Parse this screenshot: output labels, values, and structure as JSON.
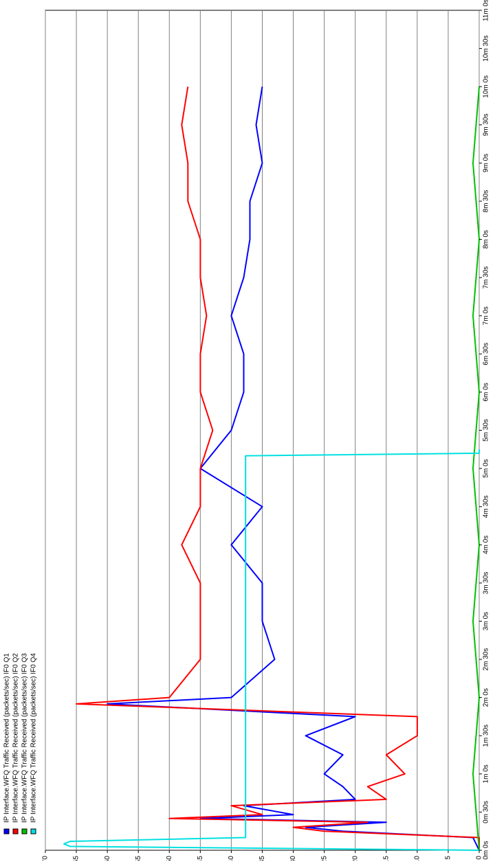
{
  "chart_data": {
    "type": "line",
    "xlabel": "",
    "ylabel": "",
    "orientation": "rotated-90",
    "grid": true,
    "legend_placement": "left",
    "y_ticks": [
      0,
      5,
      10,
      15,
      20,
      25,
      30,
      35,
      40,
      45,
      50,
      55,
      60,
      65,
      70
    ],
    "x_tick_labels": [
      "0m 0s",
      "0m 30s",
      "1m 0s",
      "1m 30s",
      "2m 0s",
      "2m 30s",
      "3m 0s",
      "3m 30s",
      "4m 0s",
      "4m 30s",
      "5m 0s",
      "5m 30s",
      "6m 0s",
      "6m 30s",
      "7m 0s",
      "7m 30s",
      "8m 0s",
      "8m 30s",
      "9m 0s",
      "9m 30s",
      "10m 0s",
      "10m 30s",
      "11m 0s"
    ],
    "xlim_seconds": [
      0,
      660
    ],
    "ylim": [
      0,
      70
    ],
    "series": [
      {
        "name": "IP Interface.WFQ Traffic Received (packets/sec) IF0 Q1",
        "color": "#0000ff",
        "x": [
          0,
          10,
          15,
          18,
          22,
          25,
          28,
          35,
          40,
          50,
          60,
          75,
          90,
          105,
          115,
          120,
          150,
          180,
          210,
          240,
          270,
          300,
          330,
          360,
          390,
          420,
          450,
          480,
          510,
          540,
          570,
          600
        ],
        "values": [
          0,
          1,
          22,
          28,
          15,
          45,
          30,
          38,
          20,
          22,
          25,
          22,
          28,
          20,
          60,
          40,
          33,
          35,
          35,
          40,
          35,
          45,
          40,
          38,
          38,
          40,
          38,
          37,
          37,
          35,
          36,
          35
        ]
      },
      {
        "name": "IP Interface.WFQ Traffic Received (packets/sec) IF0 Q2",
        "color": "#ff0000",
        "x": [
          0,
          10,
          15,
          18,
          22,
          25,
          28,
          35,
          40,
          50,
          60,
          75,
          90,
          105,
          115,
          120,
          150,
          180,
          210,
          240,
          270,
          300,
          330,
          360,
          390,
          420,
          450,
          480,
          510,
          540,
          570,
          600
        ],
        "values": [
          0,
          0,
          25,
          30,
          18,
          50,
          35,
          40,
          15,
          18,
          12,
          15,
          10,
          10,
          65,
          50,
          45,
          45,
          45,
          48,
          45,
          45,
          43,
          45,
          45,
          44,
          45,
          45,
          47,
          47,
          48,
          47
        ]
      },
      {
        "name": "IP Interface.WFQ Traffic Received (packets/sec) IF0 Q3",
        "color": "#00c000",
        "x": [
          0,
          60,
          120,
          180,
          240,
          300,
          360,
          420,
          480,
          540,
          600
        ],
        "values": [
          0,
          1,
          0,
          1,
          0,
          1,
          0,
          1,
          0,
          1,
          0
        ]
      },
      {
        "name": "IP Interface.WFQ Traffic Received (packets/sec) IF0 Q4",
        "color": "#00e0e0",
        "x": [
          0,
          3,
          5,
          7,
          10,
          20,
          310,
          312,
          315
        ],
        "values": [
          0,
          66,
          67,
          66,
          37.7,
          37.7,
          37.7,
          0,
          0
        ]
      }
    ]
  }
}
